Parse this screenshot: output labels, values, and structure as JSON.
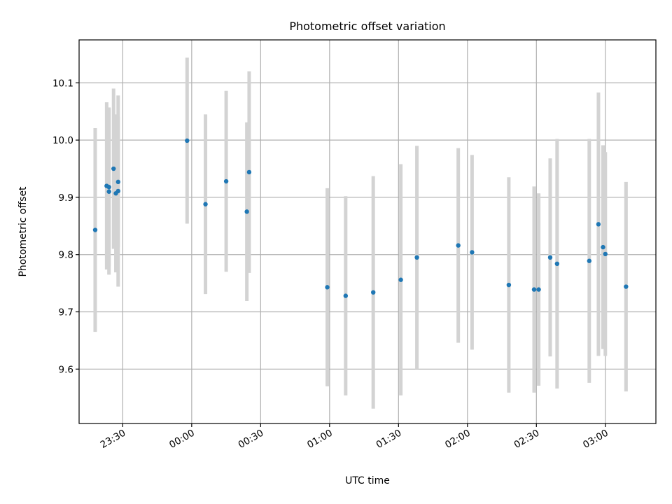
{
  "chart_data": {
    "type": "scatter",
    "title": "Photometric offset variation",
    "xlabel": "UTC time",
    "ylabel": "Photometric offset",
    "grid": true,
    "x_is_time": true,
    "xlim": [
      "23:11",
      "03:22"
    ],
    "ylim": [
      9.505,
      10.175
    ],
    "xticks": [
      "23:30",
      "00:00",
      "00:30",
      "01:00",
      "01:30",
      "02:00",
      "02:30",
      "03:00"
    ],
    "yticks": [
      9.6,
      9.7,
      9.8,
      9.9,
      10.0,
      10.1
    ],
    "ytick_labels": [
      "9.6",
      "9.7",
      "9.8",
      "9.9",
      "10.0",
      "10.1"
    ],
    "colors": {
      "points": "#1f77b4",
      "errorbars": "#d3d3d3",
      "grid": "#b0b0b0"
    },
    "series": [
      {
        "points": [
          {
            "x": "23:18",
            "y": 9.843,
            "yerr": 0.178
          },
          {
            "x": "23:23",
            "y": 9.92,
            "yerr": 0.146
          },
          {
            "x": "23:24",
            "y": 9.91,
            "yerr": 0.145
          },
          {
            "x": "23:24",
            "y": 9.918,
            "yerr": 0.139
          },
          {
            "x": "23:26",
            "y": 9.95,
            "yerr": 0.14
          },
          {
            "x": "23:27",
            "y": 9.907,
            "yerr": 0.138
          },
          {
            "x": "23:28",
            "y": 9.927,
            "yerr": 0.114
          },
          {
            "x": "23:28",
            "y": 9.911,
            "yerr": 0.167
          },
          {
            "x": "23:58",
            "y": 9.999,
            "yerr": 0.145
          },
          {
            "x": "00:06",
            "y": 9.888,
            "yerr": 0.157
          },
          {
            "x": "00:15",
            "y": 9.928,
            "yerr": 0.158
          },
          {
            "x": "00:24",
            "y": 9.875,
            "yerr": 0.156
          },
          {
            "x": "00:25",
            "y": 9.944,
            "yerr": 0.176
          },
          {
            "x": "00:59",
            "y": 9.743,
            "yerr": 0.173
          },
          {
            "x": "01:07",
            "y": 9.728,
            "yerr": 0.174
          },
          {
            "x": "01:19",
            "y": 9.734,
            "yerr": 0.203
          },
          {
            "x": "01:31",
            "y": 9.756,
            "yerr": 0.202
          },
          {
            "x": "01:38",
            "y": 9.795,
            "yerr": 0.195
          },
          {
            "x": "01:56",
            "y": 9.816,
            "yerr": 0.17
          },
          {
            "x": "02:02",
            "y": 9.804,
            "yerr": 0.17
          },
          {
            "x": "02:18",
            "y": 9.747,
            "yerr": 0.188
          },
          {
            "x": "02:29",
            "y": 9.739,
            "yerr": 0.18
          },
          {
            "x": "02:31",
            "y": 9.739,
            "yerr": 0.168
          },
          {
            "x": "02:36",
            "y": 9.795,
            "yerr": 0.173
          },
          {
            "x": "02:39",
            "y": 9.784,
            "yerr": 0.218
          },
          {
            "x": "02:53",
            "y": 9.789,
            "yerr": 0.213
          },
          {
            "x": "02:57",
            "y": 9.853,
            "yerr": 0.23
          },
          {
            "x": "02:59",
            "y": 9.813,
            "yerr": 0.178
          },
          {
            "x": "03:00",
            "y": 9.801,
            "yerr": 0.178
          },
          {
            "x": "03:09",
            "y": 9.744,
            "yerr": 0.183
          }
        ]
      }
    ]
  }
}
